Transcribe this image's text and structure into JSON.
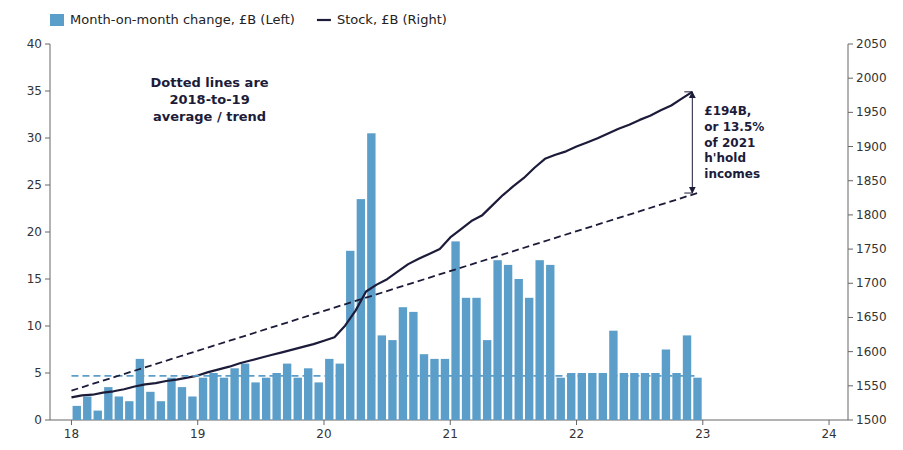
{
  "chart_data": {
    "type": "bar",
    "xlim": [
      17.83,
      24.15
    ],
    "xticks": [
      18,
      19,
      20,
      21,
      22,
      23,
      24
    ],
    "ylim": [
      0,
      40
    ],
    "yticks": [
      0,
      5,
      10,
      15,
      20,
      25,
      30,
      35,
      40
    ],
    "y2lim": [
      1500,
      2050
    ],
    "y2ticks": [
      1500,
      1550,
      1600,
      1650,
      1700,
      1750,
      1800,
      1850,
      1900,
      1950,
      2000,
      2050
    ],
    "grid": false,
    "legend": "top",
    "annotations": [
      "£194B,\nor 13.5%\nof 2021\nh'hold\nincomes",
      "Dotted lines are\n2018-to-19\naverage / trend"
    ],
    "series": [
      {
        "name": "Month-on-month change, £B (Left)",
        "type": "bar",
        "color": "#5b9ec9",
        "x": [
          18.042,
          18.125,
          18.208,
          18.292,
          18.375,
          18.458,
          18.542,
          18.625,
          18.708,
          18.792,
          18.875,
          18.958,
          19.042,
          19.125,
          19.208,
          19.292,
          19.375,
          19.458,
          19.542,
          19.625,
          19.708,
          19.792,
          19.875,
          19.958,
          20.042,
          20.125,
          20.208,
          20.292,
          20.375,
          20.458,
          20.542,
          20.625,
          20.708,
          20.792,
          20.875,
          20.958,
          21.042,
          21.125,
          21.208,
          21.292,
          21.375,
          21.458,
          21.542,
          21.625,
          21.708,
          21.792,
          21.875,
          21.958,
          22.042,
          22.125,
          22.208,
          22.292,
          22.375,
          22.458,
          22.542,
          22.625,
          22.708,
          22.792,
          22.875,
          22.958
        ],
        "values": [
          1.5,
          2.5,
          1.0,
          3.5,
          2.5,
          2.0,
          6.5,
          3.0,
          2.0,
          4.5,
          3.5,
          2.5,
          4.5,
          5.0,
          4.5,
          5.5,
          6.0,
          4.0,
          4.5,
          5.0,
          6.0,
          4.5,
          5.5,
          4.0,
          6.5,
          6.0,
          18.0,
          23.5,
          30.5,
          9.0,
          8.5,
          12.0,
          11.5,
          7.0,
          6.5,
          6.5,
          19.0,
          13.0,
          13.0,
          8.5,
          17.0,
          16.5,
          15.0,
          13.0,
          17.0,
          16.5,
          4.5,
          5.0,
          5.0,
          5.0,
          5.0,
          9.5,
          5.0,
          5.0,
          5.0,
          5.0,
          7.5,
          5.0,
          9.0,
          4.5
        ]
      },
      {
        "name": "Stock, £B (Right)",
        "type": "line",
        "color": "#1c1c3a",
        "axis": "y2",
        "x": [
          18.0,
          18.083,
          18.167,
          18.25,
          18.333,
          18.417,
          18.5,
          18.583,
          18.667,
          18.75,
          18.833,
          18.917,
          19.0,
          19.083,
          19.167,
          19.25,
          19.333,
          19.417,
          19.5,
          19.583,
          19.667,
          19.75,
          19.833,
          19.917,
          20.0,
          20.083,
          20.167,
          20.25,
          20.333,
          20.417,
          20.5,
          20.583,
          20.667,
          20.75,
          20.833,
          20.917,
          21.0,
          21.083,
          21.167,
          21.25,
          21.333,
          21.417,
          21.5,
          21.583,
          21.667,
          21.75,
          21.833,
          21.917,
          22.0,
          22.083,
          22.167,
          22.25,
          22.333,
          22.417,
          22.5,
          22.583,
          22.667,
          22.75,
          22.833,
          22.917
        ],
        "values": [
          1533,
          1536,
          1537,
          1540,
          1542,
          1545,
          1549,
          1552,
          1554,
          1557,
          1559,
          1562,
          1565,
          1570,
          1574,
          1578,
          1583,
          1587,
          1591,
          1595,
          1599,
          1603,
          1607,
          1611,
          1616,
          1621,
          1638,
          1660,
          1688,
          1698,
          1706,
          1717,
          1728,
          1736,
          1743,
          1750,
          1767,
          1779,
          1791,
          1799,
          1814,
          1829,
          1842,
          1854,
          1869,
          1882,
          1888,
          1893,
          1900,
          1906,
          1912,
          1919,
          1926,
          1932,
          1939,
          1945,
          1953,
          1960,
          1970,
          1980
        ]
      },
      {
        "type": "line",
        "line_style": "dashed",
        "color": "#5b9ec9",
        "x": [
          18.0,
          22.958
        ],
        "values": [
          4.7,
          4.7
        ]
      },
      {
        "type": "line",
        "line_style": "dashed",
        "color": "#1c1c3a",
        "axis": "y2",
        "x": [
          18.0,
          22.958
        ],
        "values": [
          1543,
          1832
        ]
      }
    ]
  }
}
